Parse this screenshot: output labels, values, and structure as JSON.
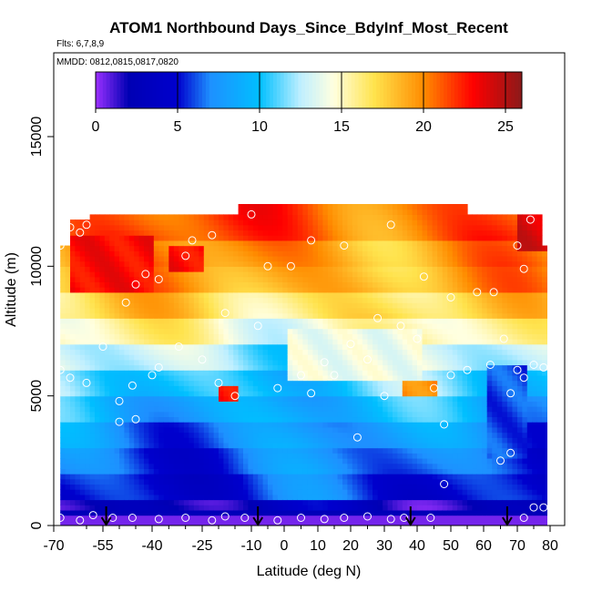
{
  "chart_data": {
    "type": "heatmap",
    "title": "ATOM1 Northbound Days_Since_BdyInf_Most_Recent",
    "subtitle_flights": "Flts: 6,7,8,9",
    "subtitle_dates": "MMDD: 0812,0815,0817,0820",
    "xlabel": "Latitude (deg N)",
    "ylabel": "Altitude (m)",
    "xlim": [
      -70,
      82
    ],
    "ylim": [
      0,
      17500
    ],
    "x_ticks": [
      -70,
      -55,
      -40,
      -25,
      -10,
      0,
      10,
      20,
      30,
      40,
      50,
      60,
      70,
      80
    ],
    "x_tick_labels": [
      "-70",
      "-55",
      "-40",
      "-25",
      "-10",
      "0",
      "10",
      "20",
      "30",
      "40",
      "50",
      "60",
      "70",
      "80"
    ],
    "x_minor_ticks": [
      -60,
      -50,
      -45,
      -35,
      -30,
      -20,
      -15,
      -5,
      5,
      15,
      25,
      35,
      45,
      55,
      65,
      75
    ],
    "y_ticks": [
      0,
      5000,
      10000,
      15000
    ],
    "y_tick_labels": [
      "0",
      "5000",
      "10000",
      "15000"
    ],
    "colorbar": {
      "min": 0,
      "max": 26,
      "ticks": [
        0,
        5,
        10,
        15,
        20,
        25
      ],
      "tick_labels": [
        "0",
        "5",
        "10",
        "15",
        "20",
        "25"
      ],
      "color_stops": [
        {
          "value": 0,
          "color": "#9b30ff"
        },
        {
          "value": 2,
          "color": "#0000b4"
        },
        {
          "value": 5,
          "color": "#0000cd"
        },
        {
          "value": 7,
          "color": "#1e90ff"
        },
        {
          "value": 10,
          "color": "#00bfff"
        },
        {
          "value": 12.5,
          "color": "#bfefff"
        },
        {
          "value": 14.5,
          "color": "#ffffe0"
        },
        {
          "value": 17,
          "color": "#ffe34d"
        },
        {
          "value": 20,
          "color": "#ff8c00"
        },
        {
          "value": 23,
          "color": "#ff0000"
        },
        {
          "value": 26,
          "color": "#8b1a1a"
        }
      ]
    },
    "layers": [
      {
        "alt_bottom": 0,
        "alt_top": 400,
        "value": 0.5
      },
      {
        "alt_bottom": 400,
        "alt_top": 1000,
        "value": 2.5
      },
      {
        "alt_bottom": 1000,
        "alt_top": 2000,
        "value": 5.5
      },
      {
        "alt_bottom": 2000,
        "alt_top": 3000,
        "value": 6.5
      },
      {
        "alt_bottom": 3000,
        "alt_top": 4000,
        "value": 7.5
      },
      {
        "alt_bottom": 4000,
        "alt_top": 5000,
        "value": 9
      },
      {
        "alt_bottom": 5000,
        "alt_top": 6000,
        "value": 10.5
      },
      {
        "alt_bottom": 6000,
        "alt_top": 7000,
        "value": 12.5
      },
      {
        "alt_bottom": 7000,
        "alt_top": 8000,
        "value": 15
      },
      {
        "alt_bottom": 8000,
        "alt_top": 9000,
        "value": 17
      },
      {
        "alt_bottom": 9000,
        "alt_top": 10000,
        "value": 19
      },
      {
        "alt_bottom": 10000,
        "alt_top": 11000,
        "value": 19.5
      },
      {
        "alt_bottom": 11000,
        "alt_top": 12000,
        "value": 21
      }
    ],
    "hotspots": [
      {
        "lat_min": -65,
        "lat_max": -40,
        "alt_min": 9000,
        "alt_max": 11000,
        "value": 23
      },
      {
        "lat_min": -35,
        "lat_max": -25,
        "alt_min": 9800,
        "alt_max": 10600,
        "value": 23
      },
      {
        "lat_min": -20,
        "lat_max": -15,
        "alt_min": 4800,
        "alt_max": 5300,
        "value": 23
      },
      {
        "lat_min": 70,
        "lat_max": 78,
        "alt_min": 10500,
        "alt_max": 12000,
        "value": 24
      },
      {
        "lat_min": 35,
        "lat_max": 45,
        "alt_min": 5000,
        "alt_max": 5500,
        "value": 20
      },
      {
        "lat_min": 0,
        "lat_max": 40,
        "alt_min": 5500,
        "alt_max": 7500,
        "value": 14
      },
      {
        "lat_min": 60,
        "lat_max": 72,
        "alt_min": 2500,
        "alt_max": 6000,
        "value": 6
      }
    ],
    "domain_outline": [
      {
        "lat": -68,
        "alt_top": 10800
      },
      {
        "lat": -65,
        "alt_top": 11800
      },
      {
        "lat": -60,
        "alt_top": 12000
      },
      {
        "lat": -15,
        "alt_top": 12000
      },
      {
        "lat": -14,
        "alt_top": 12400
      },
      {
        "lat": 55,
        "alt_top": 12400
      },
      {
        "lat": 55,
        "alt_top": 12000
      },
      {
        "lat": 77,
        "alt_top": 12000
      },
      {
        "lat": 77,
        "alt_top": 10800
      },
      {
        "lat": 79,
        "alt_top": 10800
      },
      {
        "lat": 79,
        "alt_top": 1000
      }
    ],
    "profile_markers_lat": [
      -54,
      -8,
      38,
      67
    ],
    "observations": [
      {
        "lat": -68,
        "alt": 10800
      },
      {
        "lat": -65,
        "alt": 11500
      },
      {
        "lat": -62,
        "alt": 11300
      },
      {
        "lat": -60,
        "alt": 11600
      },
      {
        "lat": -48,
        "alt": 8600
      },
      {
        "lat": -45,
        "alt": 9300
      },
      {
        "lat": -42,
        "alt": 9700
      },
      {
        "lat": -38,
        "alt": 9500
      },
      {
        "lat": -30,
        "alt": 10400
      },
      {
        "lat": -28,
        "alt": 11000
      },
      {
        "lat": -22,
        "alt": 11200
      },
      {
        "lat": -18,
        "alt": 8200
      },
      {
        "lat": -10,
        "alt": 12000
      },
      {
        "lat": -5,
        "alt": 10000
      },
      {
        "lat": 2,
        "alt": 10000
      },
      {
        "lat": 8,
        "alt": 11000
      },
      {
        "lat": 18,
        "alt": 10800
      },
      {
        "lat": 32,
        "alt": 11600
      },
      {
        "lat": 42,
        "alt": 9600
      },
      {
        "lat": 50,
        "alt": 8800
      },
      {
        "lat": 58,
        "alt": 9000
      },
      {
        "lat": 63,
        "alt": 9000
      },
      {
        "lat": 70,
        "alt": 10800
      },
      {
        "lat": 72,
        "alt": 9900
      },
      {
        "lat": 74,
        "alt": 11800
      },
      {
        "lat": -68,
        "alt": 6000
      },
      {
        "lat": -65,
        "alt": 5700
      },
      {
        "lat": -60,
        "alt": 5500
      },
      {
        "lat": -55,
        "alt": 6900
      },
      {
        "lat": -50,
        "alt": 4800
      },
      {
        "lat": -46,
        "alt": 5400
      },
      {
        "lat": -40,
        "alt": 5800
      },
      {
        "lat": -38,
        "alt": 6100
      },
      {
        "lat": -32,
        "alt": 6900
      },
      {
        "lat": -25,
        "alt": 6400
      },
      {
        "lat": -20,
        "alt": 5500
      },
      {
        "lat": -15,
        "alt": 5000
      },
      {
        "lat": -8,
        "alt": 7700
      },
      {
        "lat": -2,
        "alt": 5300
      },
      {
        "lat": 5,
        "alt": 5800
      },
      {
        "lat": 8,
        "alt": 5100
      },
      {
        "lat": 12,
        "alt": 6300
      },
      {
        "lat": 15,
        "alt": 5800
      },
      {
        "lat": 20,
        "alt": 7000
      },
      {
        "lat": 25,
        "alt": 6400
      },
      {
        "lat": 28,
        "alt": 8000
      },
      {
        "lat": 30,
        "alt": 5000
      },
      {
        "lat": 35,
        "alt": 7700
      },
      {
        "lat": 40,
        "alt": 7200
      },
      {
        "lat": 45,
        "alt": 5300
      },
      {
        "lat": 48,
        "alt": 3900
      },
      {
        "lat": 50,
        "alt": 5800
      },
      {
        "lat": 55,
        "alt": 6000
      },
      {
        "lat": 62,
        "alt": 6200
      },
      {
        "lat": 66,
        "alt": 7200
      },
      {
        "lat": 68,
        "alt": 5100
      },
      {
        "lat": 70,
        "alt": 6000
      },
      {
        "lat": 72,
        "alt": 5700
      },
      {
        "lat": 75,
        "alt": 6200
      },
      {
        "lat": 78,
        "alt": 6100
      },
      {
        "lat": -50,
        "alt": 4000
      },
      {
        "lat": -45,
        "alt": 4100
      },
      {
        "lat": 22,
        "alt": 3400
      },
      {
        "lat": 48,
        "alt": 1600
      },
      {
        "lat": 65,
        "alt": 2500
      },
      {
        "lat": 68,
        "alt": 2800
      },
      {
        "lat": 75,
        "alt": 700
      },
      {
        "lat": 78,
        "alt": 700
      },
      {
        "lat": -68,
        "alt": 300
      },
      {
        "lat": -62,
        "alt": 200
      },
      {
        "lat": -58,
        "alt": 400
      },
      {
        "lat": -52,
        "alt": 300
      },
      {
        "lat": -46,
        "alt": 300
      },
      {
        "lat": -38,
        "alt": 250
      },
      {
        "lat": -30,
        "alt": 300
      },
      {
        "lat": -22,
        "alt": 200
      },
      {
        "lat": -18,
        "alt": 350
      },
      {
        "lat": -12,
        "alt": 300
      },
      {
        "lat": -2,
        "alt": 200
      },
      {
        "lat": 5,
        "alt": 300
      },
      {
        "lat": 12,
        "alt": 250
      },
      {
        "lat": 18,
        "alt": 300
      },
      {
        "lat": 25,
        "alt": 350
      },
      {
        "lat": 32,
        "alt": 250
      },
      {
        "lat": 36,
        "alt": 300
      },
      {
        "lat": 44,
        "alt": 300
      },
      {
        "lat": 72,
        "alt": 300
      }
    ]
  }
}
